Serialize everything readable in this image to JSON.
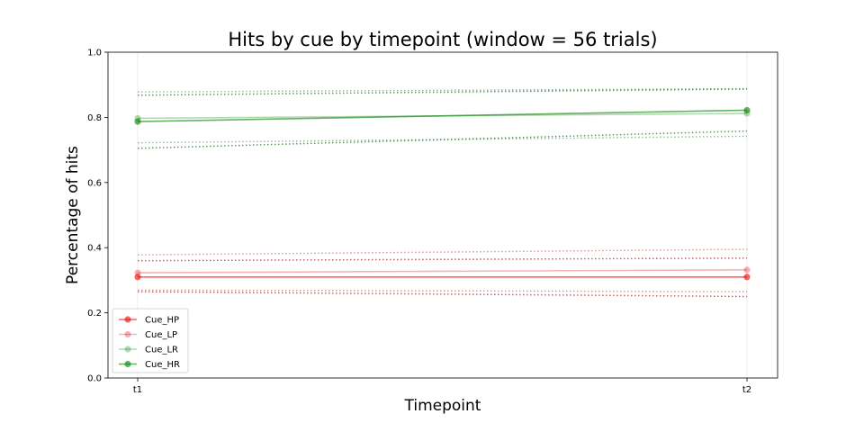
{
  "chart_data": {
    "type": "line",
    "title": "Hits by cue by timepoint (window = 56 trials)",
    "xlabel": "Timepoint",
    "ylabel": "Percentage of hits",
    "categories": [
      "t1",
      "t2"
    ],
    "ylim": [
      0,
      1.0
    ],
    "yticks": [
      "0.0",
      "0.2",
      "0.4",
      "0.6",
      "0.8",
      "1.0"
    ],
    "grid": "vertical",
    "legend_position": "lower-left",
    "series": [
      {
        "name": "Cue_HP",
        "color": "#f00000",
        "opacity": 0.6,
        "values": [
          0.31,
          0.31
        ],
        "ci_low": [
          0.265,
          0.25
        ],
        "ci_high": [
          0.36,
          0.368
        ]
      },
      {
        "name": "Cue_LP",
        "color": "#f00000",
        "opacity": 0.3,
        "values": [
          0.323,
          0.332
        ],
        "ci_low": [
          0.27,
          0.265
        ],
        "ci_high": [
          0.378,
          0.395
        ]
      },
      {
        "name": "Cue_LR",
        "color": "#008000",
        "opacity": 0.3,
        "values": [
          0.797,
          0.812
        ],
        "ci_low": [
          0.722,
          0.742
        ],
        "ci_high": [
          0.878,
          0.888
        ]
      },
      {
        "name": "Cue_HR",
        "color": "#008000",
        "opacity": 0.6,
        "values": [
          0.787,
          0.822
        ],
        "ci_low": [
          0.705,
          0.758
        ],
        "ci_high": [
          0.868,
          0.887
        ]
      }
    ]
  }
}
